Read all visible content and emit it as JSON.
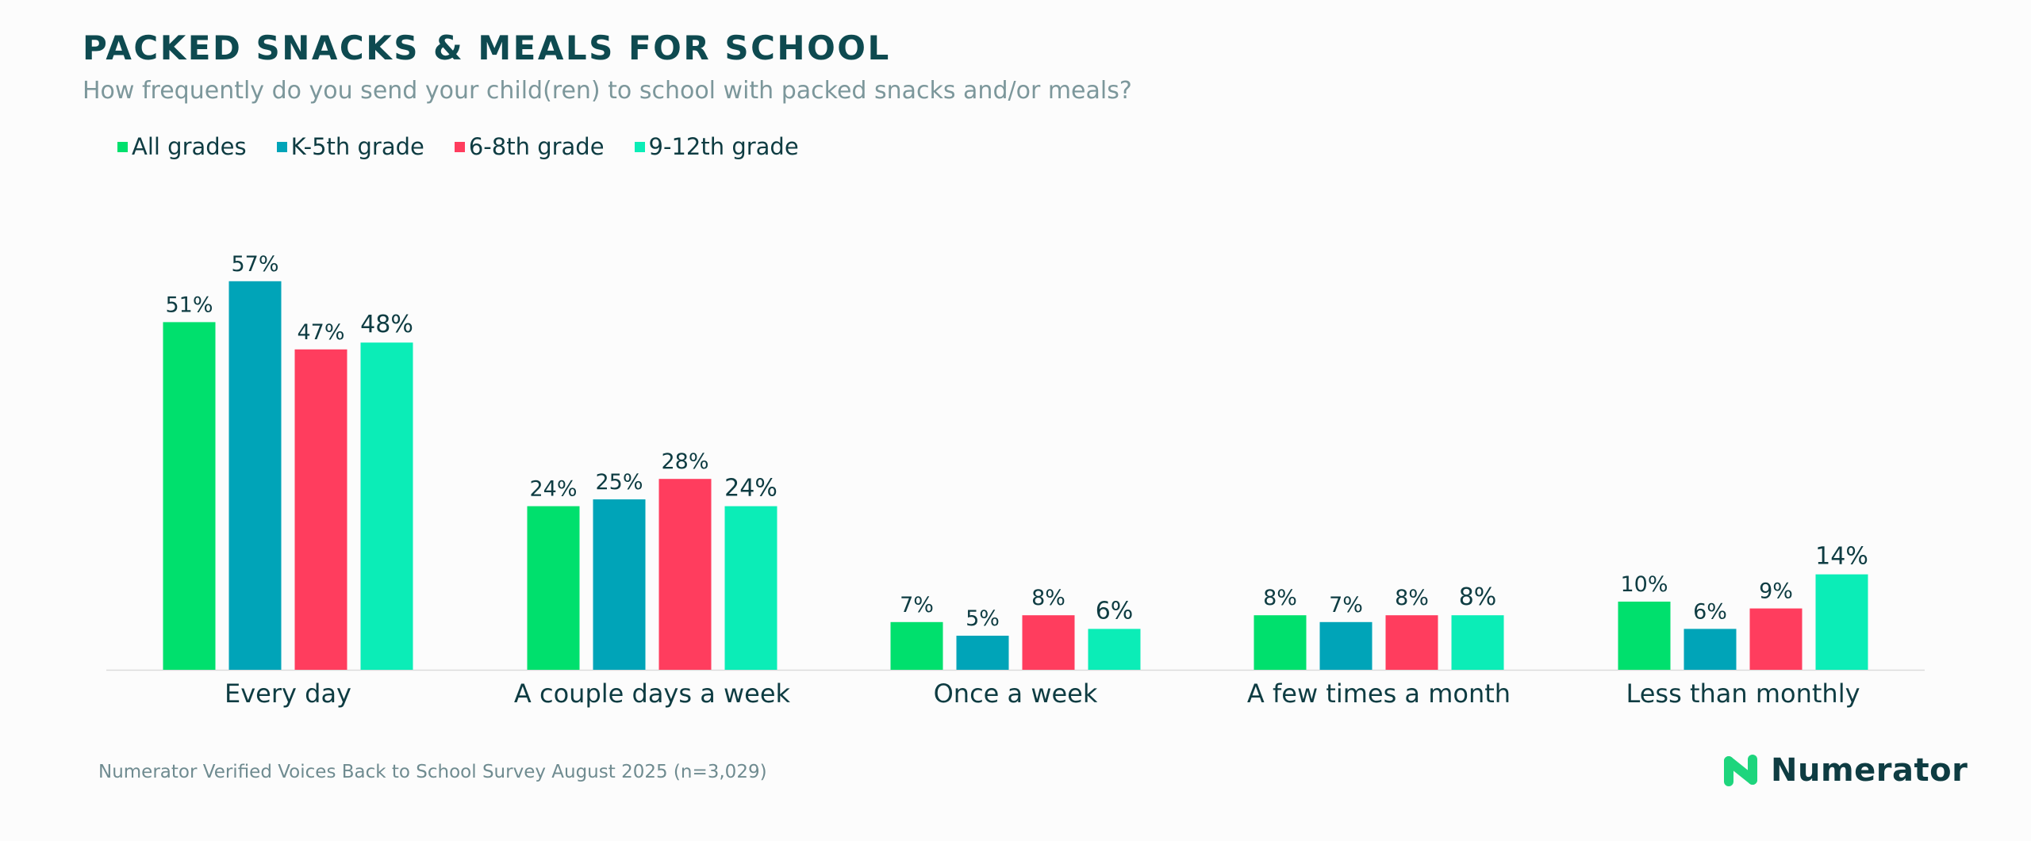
{
  "header": {
    "title": "PACKED SNACKS & MEALS FOR SCHOOL",
    "subtitle": "How frequently do you send your child(ren) to school with packed snacks and/or meals?"
  },
  "footer": {
    "source": "Numerator Verified Voices Back to School Survey August 2025 (n=3,029)",
    "brand": "Numerator",
    "brand_icon": "numerator-logo-icon",
    "brand_color": "#1ed57d"
  },
  "colors": {
    "all_grades": "#00e06d",
    "k5": "#00a4b8",
    "g68": "#ff3d5e",
    "g912": "#0bedb7",
    "label_text": "#0e3c42",
    "baseline": "#dcdcdc"
  },
  "chart_data": {
    "type": "bar",
    "title": "PACKED SNACKS & MEALS FOR SCHOOL",
    "subtitle": "How frequently do you send your child(ren) to school with packed snacks and/or meals?",
    "categories": [
      "Every day",
      "A couple days a week",
      "Once a week",
      "A few times a month",
      "Less than monthly"
    ],
    "series": [
      {
        "name": "All grades",
        "color": "#00e06d",
        "values": [
          51,
          24,
          7,
          8,
          10
        ],
        "labels": [
          "51%",
          "24%",
          "7%",
          "8%",
          "10%"
        ]
      },
      {
        "name": "K-5th grade",
        "color": "#00a4b8",
        "values": [
          57,
          25,
          5,
          7,
          6
        ],
        "labels": [
          "57%",
          "25%",
          "5%",
          "7%",
          "6%"
        ]
      },
      {
        "name": "6-8th grade",
        "color": "#ff3d5e",
        "values": [
          47,
          28,
          8,
          8,
          9
        ],
        "labels": [
          "47%",
          "28%",
          "8%",
          "8%",
          "9%"
        ]
      },
      {
        "name": "9-12th grade",
        "color": "#0bedb7",
        "values": [
          48,
          24,
          6,
          8,
          14
        ],
        "labels": [
          "48%",
          "24%",
          "6%",
          "8%",
          "14%"
        ]
      }
    ],
    "unit": "%",
    "xlabel": "",
    "ylabel": "",
    "grid": false,
    "legend_position": "top-left"
  }
}
